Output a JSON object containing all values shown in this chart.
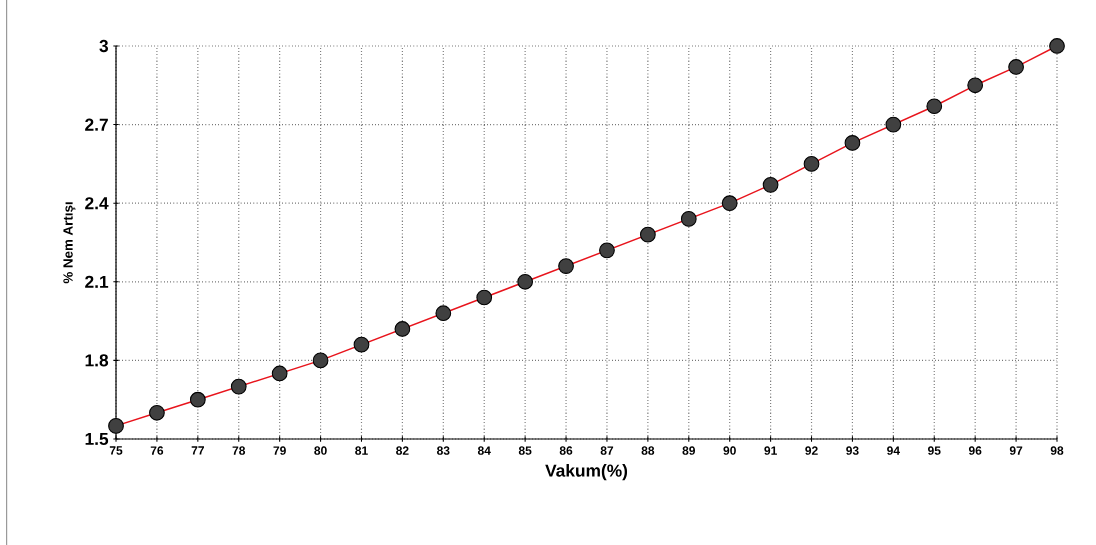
{
  "chart_data": {
    "type": "line",
    "xlabel": "Vakum(%)",
    "ylabel": "% Nem Artışı",
    "x": [
      75,
      76,
      77,
      78,
      79,
      80,
      81,
      82,
      83,
      84,
      85,
      86,
      87,
      88,
      89,
      90,
      91,
      92,
      93,
      94,
      95,
      96,
      97,
      98
    ],
    "series": [
      {
        "color": "#e8141c",
        "values": [
          1.55,
          1.6,
          1.65,
          1.7,
          1.75,
          1.8,
          1.86,
          1.92,
          1.98,
          2.04,
          2.1,
          2.16,
          2.22,
          2.28,
          2.34,
          2.4,
          2.47,
          2.55,
          2.63,
          2.7,
          2.77,
          2.85,
          2.92,
          3.0
        ]
      }
    ],
    "xlim": [
      75,
      98
    ],
    "xticks": [
      75,
      76,
      77,
      78,
      79,
      80,
      81,
      82,
      83,
      84,
      85,
      86,
      87,
      88,
      89,
      90,
      91,
      92,
      93,
      94,
      95,
      96,
      97,
      98
    ],
    "ylim": [
      1.5,
      3
    ],
    "yticks": [
      1.5,
      1.8,
      2.1,
      2.4,
      2.7,
      3
    ],
    "grid": true,
    "marker": "circle",
    "line_style": "solid"
  }
}
